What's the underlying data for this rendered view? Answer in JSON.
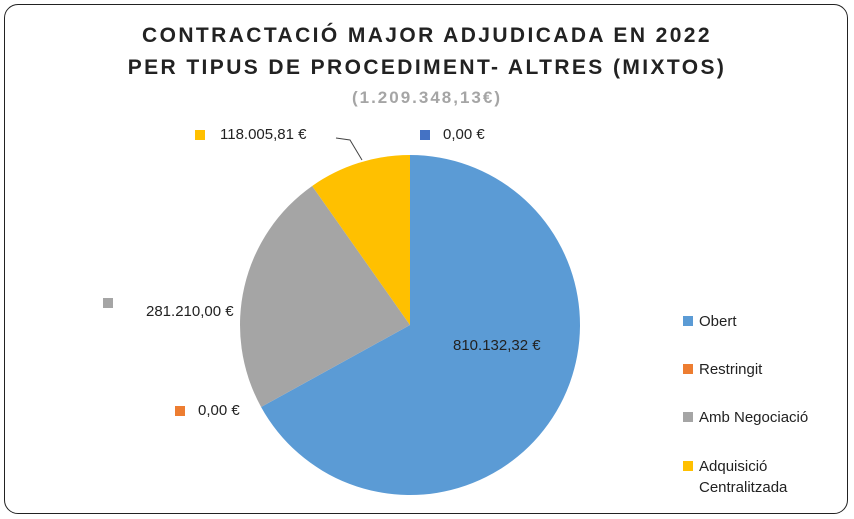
{
  "chart_data": {
    "type": "pie",
    "title": [
      "CONTRACTACIÓ MAJOR ADJUDICADA EN 2022",
      "PER TIPUS DE PROCEDIMENT- ALTRES (MIXTOS)"
    ],
    "subtitle": "(1.209.348,13€)",
    "categories": [
      "Obert",
      "Restringit",
      "Amb Negociació",
      "Adquisició Centralitzada",
      null
    ],
    "values": [
      810132.32,
      0,
      281210.0,
      118005.81,
      0
    ],
    "value_labels": [
      "810.132,32 €",
      "0,00 €",
      "281.210,00 €",
      "118.005,81 €",
      "0,00 €"
    ],
    "colors": [
      "#5b9bd5",
      "#ed7d31",
      "#a5a5a5",
      "#ffc000",
      "#4472c4"
    ],
    "legend": "right"
  }
}
